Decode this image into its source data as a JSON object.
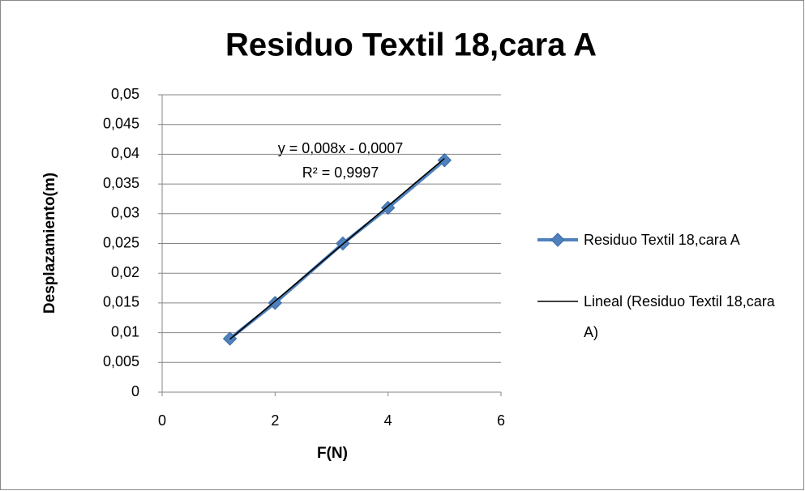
{
  "chart_data": {
    "type": "scatter",
    "title": "Residuo Textil 18,cara A",
    "x_label": "F(N)",
    "y_label": "Desplazamiento(m)",
    "annotations": [
      "y = 0,008x - 0,0007",
      "R² = 0,9997"
    ],
    "series": [
      {
        "name": "Residuo Textil 18,cara A",
        "color": "#4f81bd",
        "x": [
          1.2,
          2,
          3.2,
          4,
          5
        ],
        "values": [
          0.009,
          0.015,
          0.025,
          0.031,
          0.039
        ]
      },
      {
        "name": "Lineal (Residuo Textil 18,cara A)",
        "color": "#000000",
        "x": [
          1.2,
          5
        ],
        "values": [
          0.0089,
          0.0393
        ]
      }
    ],
    "xlim": [
      0,
      6
    ],
    "xticks": [
      0,
      2,
      4,
      6
    ],
    "ylim": [
      0,
      0.05
    ],
    "yticks": [
      0,
      {
        "value": 0.005,
        "label": "0,005"
      },
      {
        "value": 0.01,
        "label": "0,01"
      },
      {
        "value": 0.015,
        "label": "0,015"
      },
      {
        "value": 0.02,
        "label": "0,02"
      },
      {
        "value": 0.025,
        "label": "0,025"
      },
      {
        "value": 0.03,
        "label": "0,03"
      },
      {
        "value": 0.035,
        "label": "0,035"
      },
      {
        "value": 0.04,
        "label": "0,04"
      },
      {
        "value": 0.045,
        "label": "0,045"
      },
      {
        "value": 0.05,
        "label": "0,05"
      }
    ],
    "grid": true,
    "legend": "right"
  }
}
